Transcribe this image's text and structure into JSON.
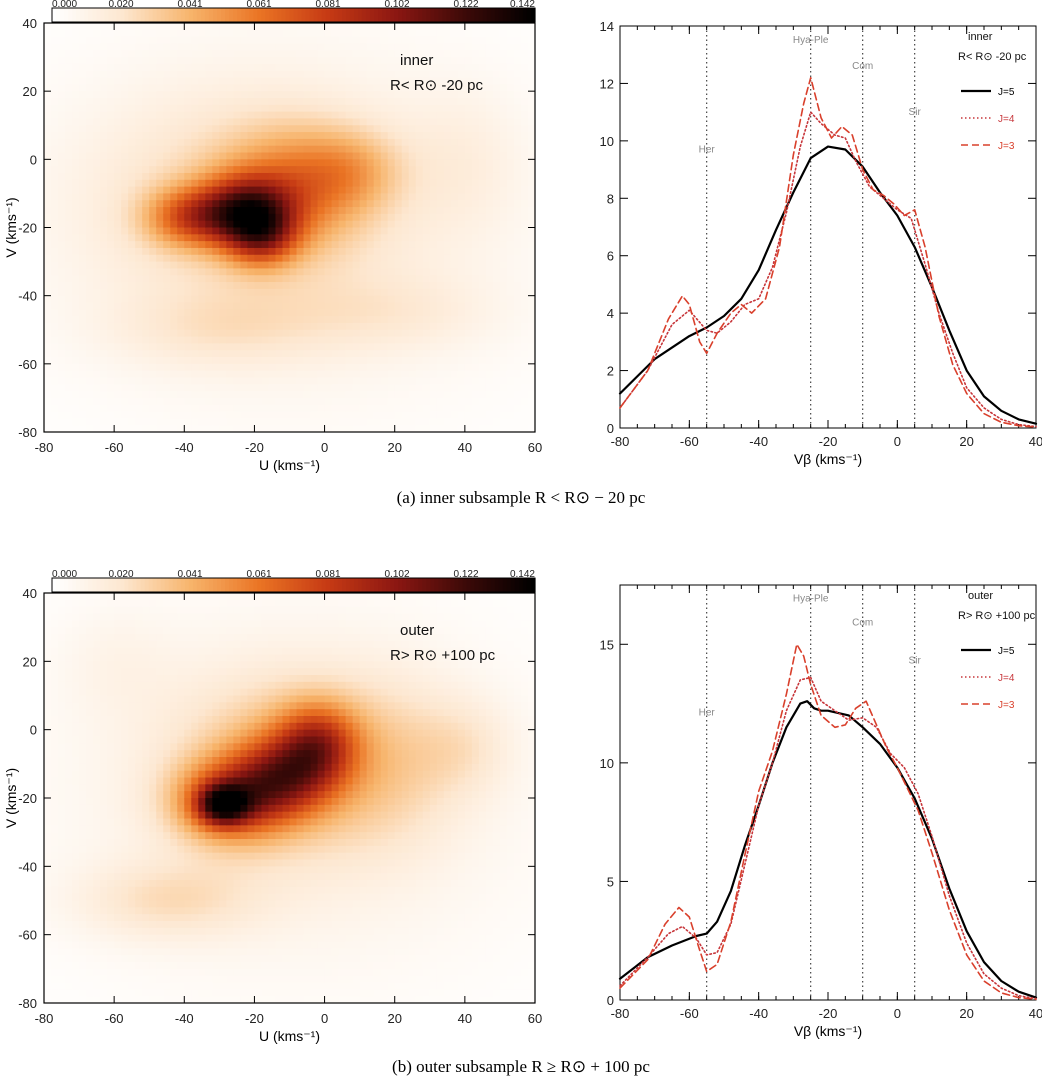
{
  "colors": {
    "cmap": [
      "#ffffff",
      "#fde7d0",
      "#f7b46b",
      "#ea7424",
      "#c63a14",
      "#8c1712",
      "#3d0a08",
      "#000000"
    ],
    "j5": "#000000",
    "j4": "#c7363b",
    "j3": "#d9402c",
    "vline": "#444444"
  },
  "captions": {
    "a": "(a) inner subsample R < R⊙ − 20 pc",
    "b": "(b) outer subsample R ≥ R⊙ + 100 pc"
  },
  "chart_data": [
    {
      "type": "heatmap",
      "panel": "a-left",
      "xlabel": "U (kms⁻¹)",
      "ylabel": "V (kms⁻¹)",
      "xlim": [
        -80,
        60
      ],
      "ylim": [
        -80,
        40
      ],
      "xticks": [
        "-80",
        "-60",
        "-40",
        "-20",
        "0",
        "20",
        "40",
        "60"
      ],
      "yticks": [
        "40",
        "20",
        "0",
        "-20",
        "-40",
        "-60",
        "-80"
      ],
      "colorbar": {
        "ticks": [
          "0.000",
          "0.020",
          "0.041",
          "0.061",
          "0.081",
          "0.102",
          "0.122",
          "0.142"
        ],
        "range": [
          0,
          0.142
        ]
      },
      "annotations": [
        "inner",
        "R< R⊙ -20 pc"
      ],
      "background": 0.012,
      "blobs": [
        {
          "u": -22,
          "v": -15,
          "su": 9,
          "sv": 7,
          "a": 0.075
        },
        {
          "u": -18,
          "v": -23,
          "su": 7,
          "sv": 6,
          "a": 0.05
        },
        {
          "u": -38,
          "v": -17,
          "su": 9,
          "sv": 6,
          "a": 0.05
        },
        {
          "u": -8,
          "v": -8,
          "su": 14,
          "sv": 12,
          "a": 0.035
        },
        {
          "u": 8,
          "v": -3,
          "su": 10,
          "sv": 8,
          "a": 0.02
        },
        {
          "u": -25,
          "v": -12,
          "su": 30,
          "sv": 22,
          "a": 0.018
        },
        {
          "u": -30,
          "v": -50,
          "su": 22,
          "sv": 8,
          "a": 0.012
        },
        {
          "u": 20,
          "v": -45,
          "su": 20,
          "sv": 8,
          "a": 0.01
        },
        {
          "u": 40,
          "v": 0,
          "su": 12,
          "sv": 15,
          "a": 0.008
        }
      ]
    },
    {
      "type": "line",
      "panel": "a-right",
      "xlabel": "Vβ (kms⁻¹)",
      "ylabel": "",
      "xlim": [
        -80,
        40
      ],
      "ylim": [
        0,
        14
      ],
      "xticks": [
        -80,
        -60,
        -40,
        -20,
        0,
        20,
        40
      ],
      "yticks": [
        0,
        2,
        4,
        6,
        8,
        10,
        12,
        14
      ],
      "vlines": [
        {
          "x": -55,
          "label": "Her",
          "label_y": 9.6
        },
        {
          "x": -25,
          "label": "Hya-Ple",
          "label_y": 13.4
        },
        {
          "x": -10,
          "label": "Com",
          "label_y": 12.5
        },
        {
          "x": 5,
          "label": "Sir",
          "label_y": 10.9
        }
      ],
      "annotations": [
        "inner",
        "R< R⊙ -20 pc"
      ],
      "legend": {
        "position": "top-right",
        "entries": [
          "J=5",
          "J=4",
          "J=3"
        ]
      },
      "series": [
        {
          "name": "J=5",
          "style": "solid",
          "x": [
            -80,
            -70,
            -60,
            -55,
            -50,
            -45,
            -40,
            -35,
            -30,
            -25,
            -20,
            -15,
            -10,
            -5,
            0,
            5,
            10,
            15,
            20,
            25,
            30,
            35,
            40
          ],
          "y": [
            1.2,
            2.4,
            3.2,
            3.5,
            3.9,
            4.5,
            5.5,
            6.9,
            8.2,
            9.4,
            9.8,
            9.7,
            9.1,
            8.2,
            7.4,
            6.3,
            4.9,
            3.4,
            2.0,
            1.1,
            0.6,
            0.3,
            0.15
          ]
        },
        {
          "name": "J=4",
          "style": "dotted",
          "x": [
            -80,
            -72,
            -65,
            -60,
            -55,
            -52,
            -48,
            -44,
            -40,
            -36,
            -32,
            -28,
            -25,
            -22,
            -18,
            -15,
            -12,
            -8,
            -4,
            0,
            4,
            8,
            12,
            16,
            20,
            25,
            30,
            35,
            40
          ],
          "y": [
            0.7,
            2.0,
            3.6,
            4.1,
            3.4,
            3.3,
            3.7,
            4.3,
            4.5,
            5.6,
            7.5,
            9.8,
            11.0,
            10.6,
            10.2,
            10.1,
            9.3,
            8.4,
            8.0,
            7.6,
            7.3,
            5.7,
            4.0,
            2.6,
            1.4,
            0.7,
            0.3,
            0.12,
            0.05
          ]
        },
        {
          "name": "J=3",
          "style": "dashed",
          "x": [
            -80,
            -72,
            -66,
            -62,
            -60,
            -57,
            -55,
            -52,
            -48,
            -45,
            -42,
            -38,
            -34,
            -30,
            -27,
            -25,
            -22,
            -19,
            -16,
            -13,
            -10,
            -7,
            -4,
            -1,
            2,
            5,
            8,
            12,
            16,
            20,
            25,
            30,
            35,
            40
          ],
          "y": [
            0.7,
            2.0,
            3.8,
            4.6,
            4.3,
            3.0,
            2.6,
            3.3,
            4.0,
            4.3,
            4.0,
            4.5,
            6.3,
            9.5,
            11.3,
            12.2,
            10.8,
            10.1,
            10.5,
            10.2,
            9.0,
            8.3,
            8.1,
            7.8,
            7.4,
            7.6,
            6.3,
            3.9,
            2.2,
            1.2,
            0.5,
            0.2,
            0.08,
            0.03
          ]
        }
      ]
    },
    {
      "type": "heatmap",
      "panel": "b-left",
      "xlabel": "U (kms⁻¹)",
      "ylabel": "V (kms⁻¹)",
      "xlim": [
        -80,
        60
      ],
      "ylim": [
        -80,
        40
      ],
      "xticks": [
        "-80",
        "-60",
        "-40",
        "-20",
        "0",
        "20",
        "40",
        "60"
      ],
      "yticks": [
        "40",
        "20",
        "0",
        "-20",
        "-40",
        "-60",
        "-80"
      ],
      "colorbar": {
        "ticks": [
          "0.000",
          "0.020",
          "0.041",
          "0.061",
          "0.081",
          "0.102",
          "0.122",
          "0.142"
        ],
        "range": [
          0,
          0.142
        ]
      },
      "annotations": [
        "outer",
        "R> R⊙ +100 pc"
      ],
      "background": 0.012,
      "blobs": [
        {
          "u": -29,
          "v": -22,
          "su": 5,
          "sv": 4,
          "a": 0.07
        },
        {
          "u": -27,
          "v": -21,
          "su": 11,
          "sv": 8,
          "a": 0.06
        },
        {
          "u": -12,
          "v": -14,
          "su": 10,
          "sv": 8,
          "a": 0.055
        },
        {
          "u": -2,
          "v": -4,
          "su": 8,
          "sv": 8,
          "a": 0.055
        },
        {
          "u": -10,
          "v": -10,
          "su": 22,
          "sv": 18,
          "a": 0.03
        },
        {
          "u": -45,
          "v": -50,
          "su": 18,
          "sv": 8,
          "a": 0.018
        },
        {
          "u": 20,
          "v": -10,
          "su": 14,
          "sv": 18,
          "a": 0.012
        },
        {
          "u": 40,
          "v": -5,
          "su": 10,
          "sv": 10,
          "a": 0.012
        },
        {
          "u": -60,
          "v": 20,
          "su": 12,
          "sv": 12,
          "a": 0.006
        }
      ]
    },
    {
      "type": "line",
      "panel": "b-right",
      "xlabel": "Vβ (kms⁻¹)",
      "ylabel": "",
      "xlim": [
        -80,
        40
      ],
      "ylim": [
        0,
        17.5
      ],
      "xticks": [
        -80,
        -60,
        -40,
        -20,
        0,
        20,
        40
      ],
      "yticks": [
        0,
        5,
        10,
        15
      ],
      "vlines": [
        {
          "x": -55,
          "label": "Her",
          "label_y": 12.0
        },
        {
          "x": -25,
          "label": "Hya-Ple",
          "label_y": 16.8
        },
        {
          "x": -10,
          "label": "Com",
          "label_y": 15.8
        },
        {
          "x": 5,
          "label": "Sir",
          "label_y": 14.2
        }
      ],
      "annotations": [
        "outer",
        "R> R⊙ +100 pc"
      ],
      "legend": {
        "position": "top-right",
        "entries": [
          "J=5",
          "J=4",
          "J=3"
        ]
      },
      "series": [
        {
          "name": "J=5",
          "style": "solid",
          "x": [
            -80,
            -72,
            -65,
            -58,
            -55,
            -52,
            -48,
            -44,
            -40,
            -36,
            -32,
            -28,
            -26,
            -24,
            -22,
            -20,
            -17,
            -14,
            -10,
            -5,
            0,
            5,
            10,
            15,
            20,
            25,
            30,
            35,
            40
          ],
          "y": [
            0.9,
            1.8,
            2.3,
            2.7,
            2.8,
            3.3,
            4.6,
            6.5,
            8.2,
            10.0,
            11.5,
            12.5,
            12.6,
            12.3,
            12.2,
            12.2,
            12.1,
            12.0,
            11.5,
            10.8,
            9.8,
            8.5,
            6.8,
            4.7,
            2.9,
            1.6,
            0.8,
            0.35,
            0.1
          ]
        },
        {
          "name": "J=4",
          "style": "dotted",
          "x": [
            -80,
            -72,
            -66,
            -62,
            -58,
            -55,
            -52,
            -48,
            -44,
            -40,
            -36,
            -32,
            -28,
            -25,
            -22,
            -18,
            -14,
            -10,
            -6,
            -2,
            2,
            6,
            10,
            15,
            20,
            25,
            30,
            35,
            40
          ],
          "y": [
            0.6,
            1.8,
            2.8,
            3.1,
            2.6,
            1.9,
            2.0,
            3.2,
            5.7,
            8.2,
            10.0,
            12.2,
            13.5,
            13.6,
            12.6,
            12.2,
            11.8,
            11.9,
            11.5,
            10.4,
            9.8,
            8.7,
            6.9,
            4.4,
            2.4,
            1.1,
            0.5,
            0.18,
            0.06
          ]
        },
        {
          "name": "J=3",
          "style": "dashed",
          "x": [
            -80,
            -72,
            -67,
            -63,
            -60,
            -57,
            -55,
            -52,
            -48,
            -44,
            -40,
            -36,
            -32,
            -29,
            -27,
            -25,
            -22,
            -18,
            -15,
            -12,
            -9,
            -6,
            -3,
            0,
            3,
            6,
            10,
            15,
            20,
            25,
            30,
            35,
            40
          ],
          "y": [
            0.5,
            1.7,
            3.2,
            3.9,
            3.5,
            2.1,
            1.2,
            1.5,
            3.3,
            6.1,
            8.8,
            10.5,
            12.9,
            15.0,
            14.5,
            13.3,
            12.0,
            11.5,
            11.6,
            12.3,
            12.6,
            11.6,
            10.6,
            9.8,
            8.9,
            8.0,
            6.2,
            3.8,
            1.9,
            0.8,
            0.3,
            0.1,
            0.03
          ]
        }
      ]
    }
  ]
}
